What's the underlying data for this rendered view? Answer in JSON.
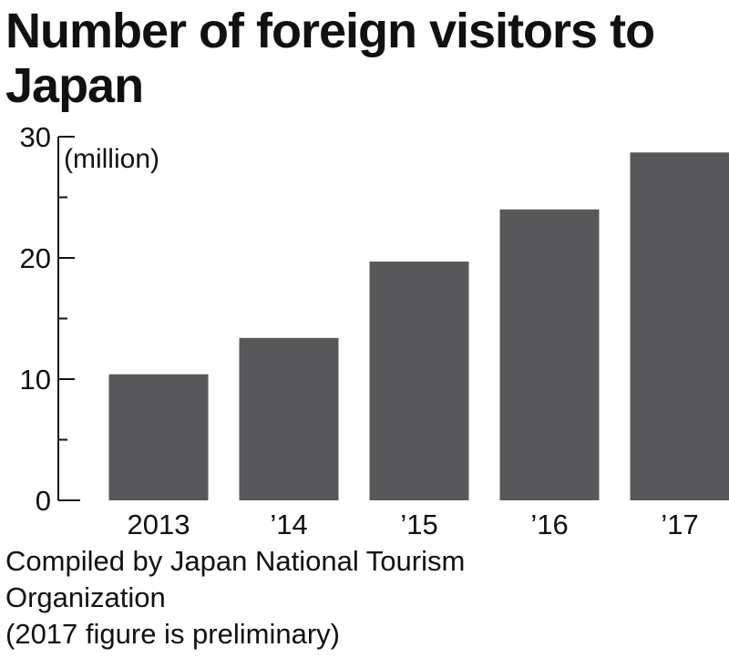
{
  "chart_data": {
    "type": "bar",
    "title": "Number of foreign visitors to Japan",
    "unit_label": "(million)",
    "categories": [
      "2013",
      "’14",
      "’15",
      "’16",
      "’17"
    ],
    "values": [
      10.4,
      13.4,
      19.7,
      24.0,
      28.7
    ],
    "yticks": [
      0,
      10,
      20,
      30
    ],
    "ylim": [
      0,
      30
    ],
    "bar_color": "#58585a",
    "grid": false
  },
  "footer": {
    "lines": [
      "Compiled by Japan National Tourism",
      "Organization",
      "(2017 figure is preliminary)"
    ]
  }
}
